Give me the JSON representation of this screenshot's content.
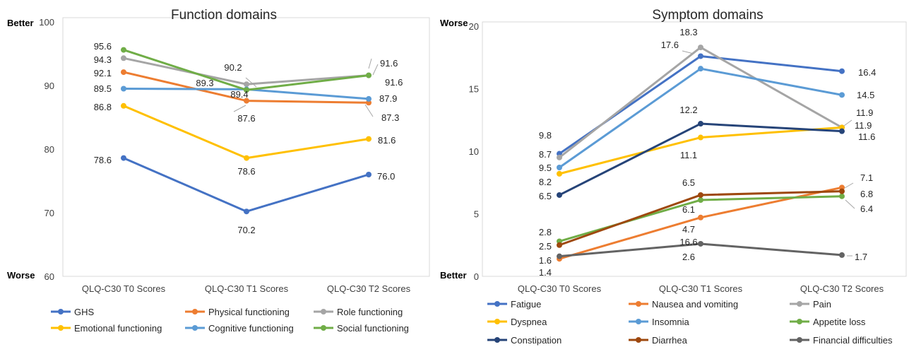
{
  "chart_data": [
    {
      "type": "line",
      "title": "Function domains",
      "categories": [
        "QLQ-C30 T0 Scores",
        "QLQ-C30 T1 Scores",
        "QLQ-C30 T2 Scores"
      ],
      "ylim": [
        60,
        100
      ],
      "yticks": [
        60,
        70,
        80,
        90,
        100
      ],
      "grid": false,
      "legend_position": "bottom",
      "y_top_label": "Better",
      "y_bottom_label": "Worse",
      "series": [
        {
          "name": "GHS",
          "color": "#4472C4",
          "values": [
            78.6,
            70.2,
            76.0
          ],
          "labels": [
            "78.6",
            "70.2",
            "76.0"
          ]
        },
        {
          "name": "Physical functioning",
          "color": "#ED7D31",
          "values": [
            92.1,
            87.6,
            87.3
          ],
          "labels": [
            "92.1",
            "87.6",
            "87.3"
          ]
        },
        {
          "name": "Role functioning",
          "color": "#A5A5A5",
          "values": [
            94.3,
            90.2,
            91.6
          ],
          "labels": [
            "94.3",
            "90.2",
            "91.6"
          ]
        },
        {
          "name": "Emotional functioning",
          "color": "#FFC000",
          "values": [
            86.8,
            78.6,
            81.6
          ],
          "labels": [
            "86.8",
            "78.6",
            "81.6"
          ]
        },
        {
          "name": "Cognitive functioning",
          "color": "#5B9BD5",
          "values": [
            89.5,
            89.4,
            87.9
          ],
          "labels": [
            "89.5",
            "89.4",
            "87.9"
          ]
        },
        {
          "name": "Social functioning",
          "color": "#70AD47",
          "values": [
            95.6,
            89.3,
            91.6
          ],
          "labels": [
            "95.6",
            "89.3",
            "91.6"
          ]
        }
      ]
    },
    {
      "type": "line",
      "title": "Symptom domains",
      "categories": [
        "QLQ-C30 T0 Scores",
        "QLQ-C30 T1 Scores",
        "QLQ-C30 T2 Scores"
      ],
      "ylim": [
        0,
        20
      ],
      "yticks": [
        0,
        5,
        10,
        15,
        20
      ],
      "grid": false,
      "legend_position": "bottom",
      "y_top_label": "Worse",
      "y_bottom_label": "Better",
      "series": [
        {
          "name": "Fatigue",
          "color": "#4472C4",
          "values": [
            9.8,
            17.6,
            16.4
          ],
          "labels": [
            "9.8",
            "17.6",
            "16.4"
          ]
        },
        {
          "name": "Nausea and vomiting",
          "color": "#ED7D31",
          "values": [
            1.4,
            4.7,
            7.1
          ],
          "labels": [
            "1.4",
            "4.7",
            "7.1"
          ]
        },
        {
          "name": "Pain",
          "color": "#A5A5A5",
          "values": [
            9.5,
            18.3,
            11.9
          ],
          "labels": [
            "9.5",
            "18.3",
            "11.9"
          ]
        },
        {
          "name": "Dyspnea",
          "color": "#FFC000",
          "values": [
            8.2,
            11.1,
            11.9
          ],
          "labels": [
            "8.2",
            "11.1",
            "11.9"
          ]
        },
        {
          "name": "Insomnia",
          "color": "#5B9BD5",
          "values": [
            8.7,
            16.6,
            14.5
          ],
          "labels": [
            "8.7",
            "16.6",
            "14.5"
          ]
        },
        {
          "name": "Appetite loss",
          "color": "#70AD47",
          "values": [
            2.8,
            6.1,
            6.4
          ],
          "labels": [
            "2.8",
            "6.1",
            "6.4"
          ]
        },
        {
          "name": "Constipation",
          "color": "#264478",
          "values": [
            6.5,
            12.2,
            11.6
          ],
          "labels": [
            "6.5",
            "12.2",
            "11.6"
          ]
        },
        {
          "name": "Diarrhea",
          "color": "#9E480E",
          "values": [
            2.5,
            6.5,
            6.8
          ],
          "labels": [
            "2.5",
            "6.5",
            "6.8"
          ]
        },
        {
          "name": "Financial difficulties",
          "color": "#636363",
          "values": [
            1.6,
            2.6,
            1.7
          ],
          "labels": [
            "1.6",
            "2.6",
            "1.7"
          ]
        }
      ]
    }
  ]
}
